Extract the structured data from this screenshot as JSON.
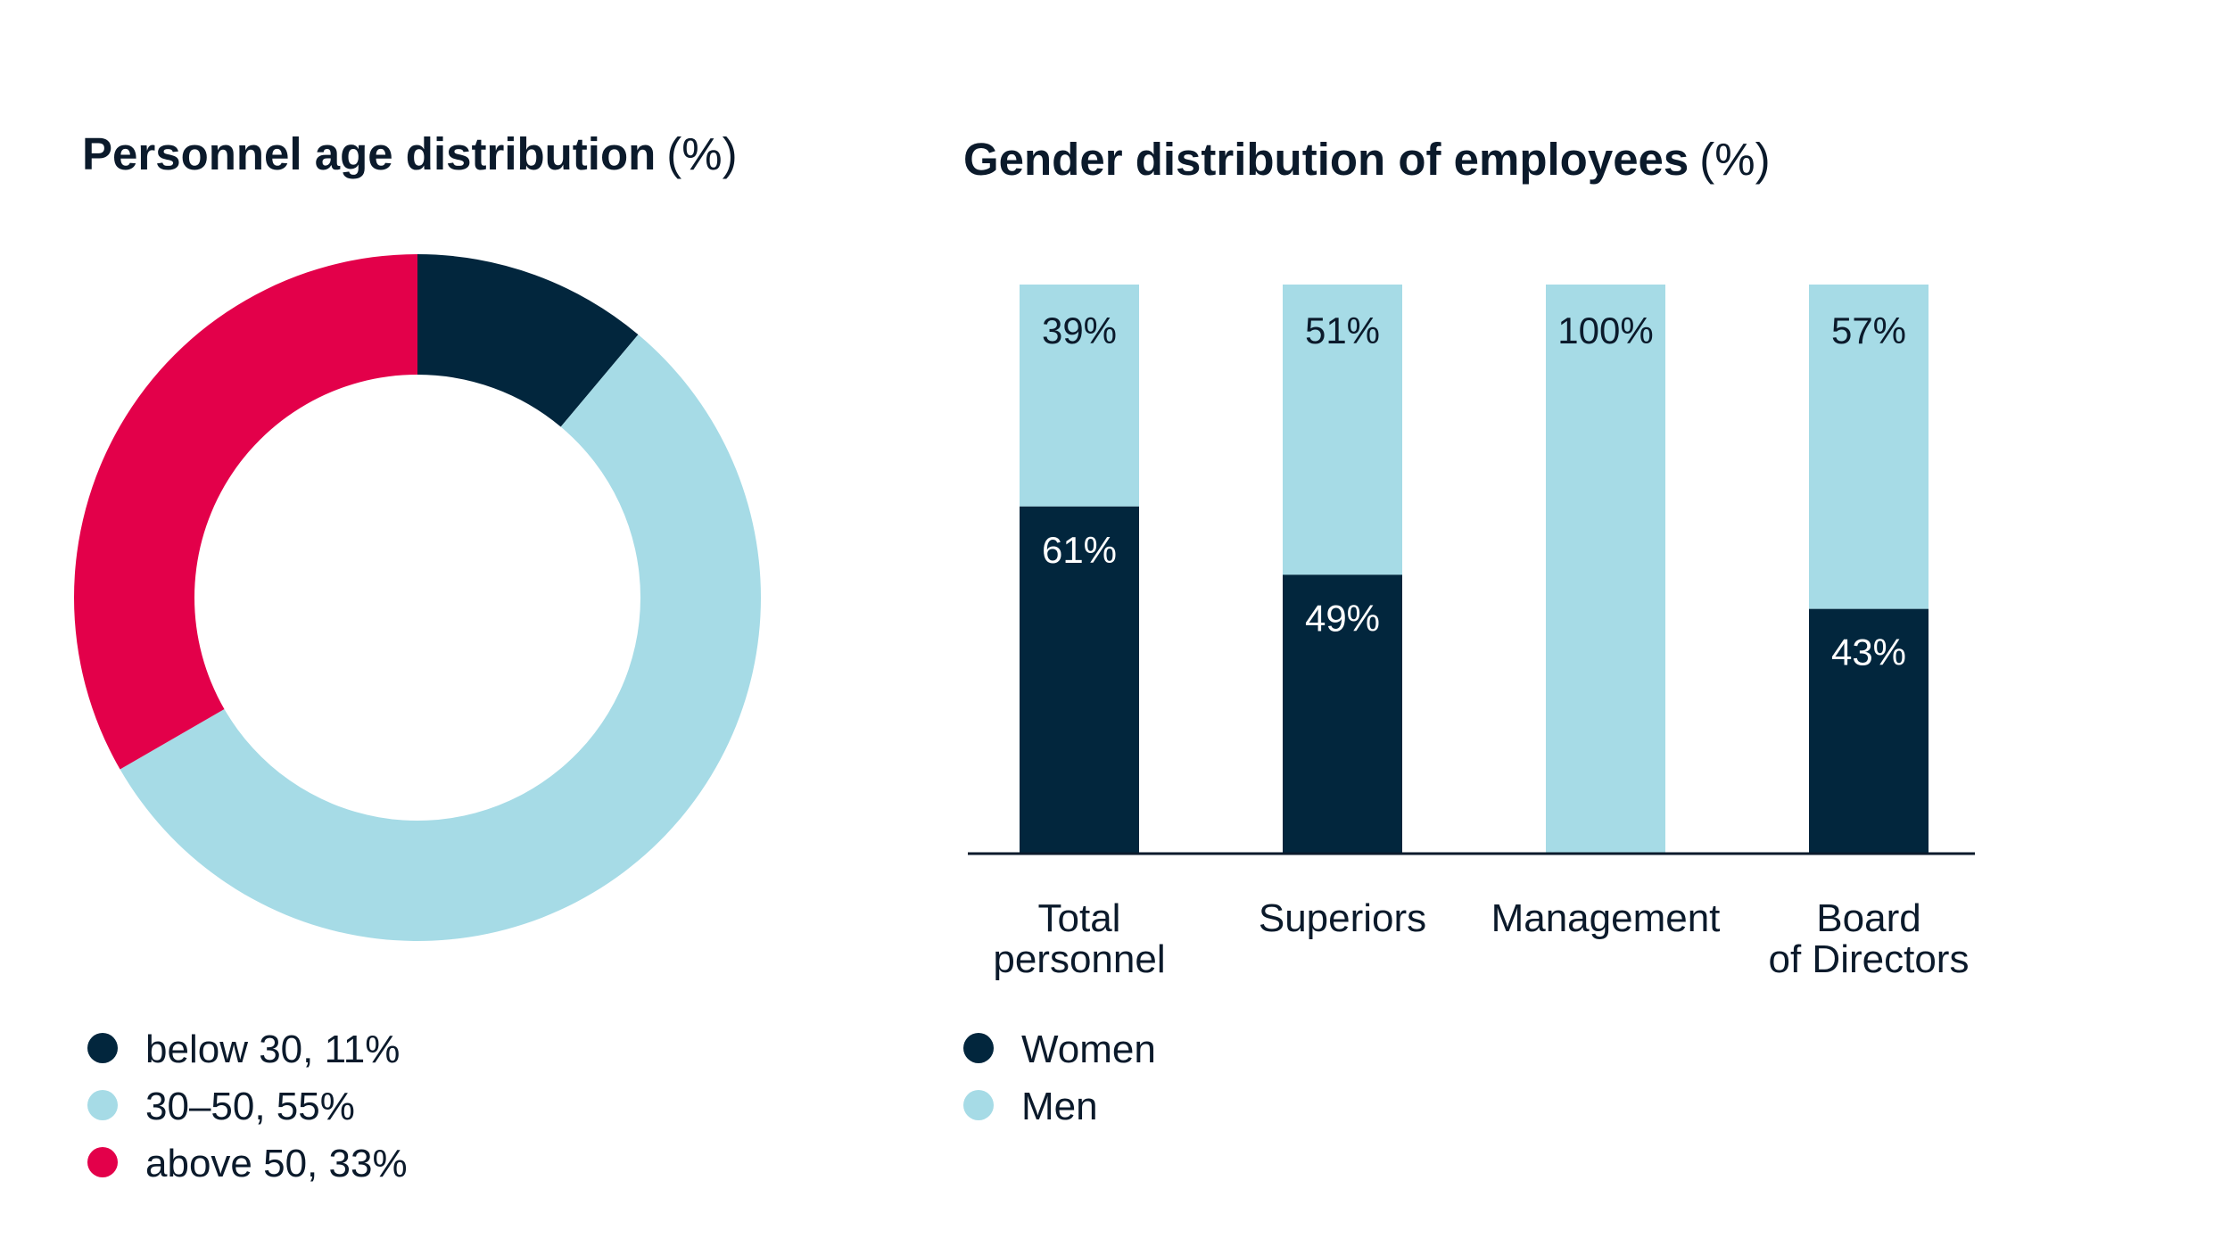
{
  "colors": {
    "dark_navy": "#02263d",
    "light_blue": "#a6dbe6",
    "crimson": "#e3004a",
    "text": "#0b1a2b"
  },
  "chart_data": [
    {
      "type": "pie",
      "title": "Personnel age distribution",
      "unit": "(%)",
      "slices": [
        {
          "label": "below 30",
          "value": 11,
          "legend_text": "below 30, 11%",
          "color": "#02263d"
        },
        {
          "label": "30–50",
          "value": 55,
          "legend_text": "30–50, 55%",
          "color": "#a6dbe6"
        },
        {
          "label": "above 50",
          "value": 33,
          "legend_text": "above 50, 33%",
          "color": "#e3004a"
        }
      ],
      "legend_placement": "bottom-left"
    },
    {
      "type": "bar",
      "stacked": true,
      "title": "Gender distribution of employees",
      "unit": "(%)",
      "categories": [
        [
          "Total",
          "personnel"
        ],
        [
          "Superiors"
        ],
        [
          "Management"
        ],
        [
          "Board",
          "of Directors"
        ]
      ],
      "series": [
        {
          "name": "Women",
          "values": [
            61,
            49,
            0,
            43
          ],
          "labels": [
            "61%",
            "49%",
            "",
            "43%"
          ],
          "color": "#02263d"
        },
        {
          "name": "Men",
          "values": [
            39,
            51,
            100,
            57
          ],
          "labels": [
            "39%",
            "51%",
            "100%",
            "57%"
          ],
          "color": "#a6dbe6"
        }
      ],
      "ylim": [
        0,
        100
      ],
      "grid": false,
      "legend_placement": "bottom-left"
    }
  ]
}
